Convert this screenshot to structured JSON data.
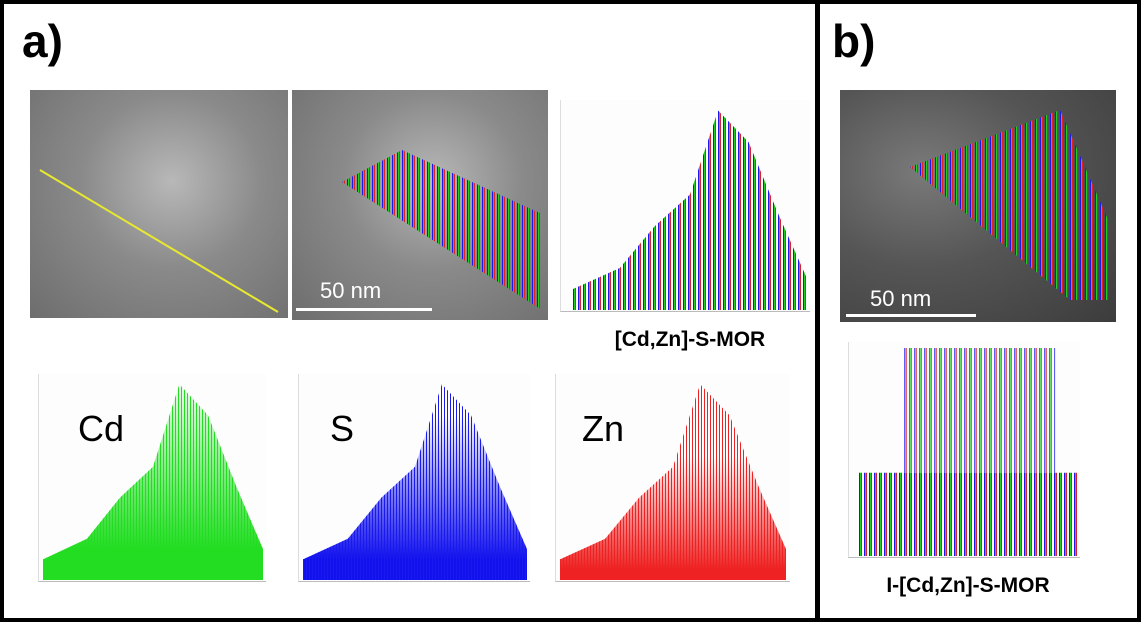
{
  "panels": [
    {
      "label": "a)",
      "scale_bar": "50 nm",
      "line_scan_title": "[Cd,Zn]-S-MOR",
      "element_profiles": [
        {
          "label": "Cd"
        },
        {
          "label": "S"
        },
        {
          "label": "Zn"
        }
      ]
    },
    {
      "label": "b)",
      "scale_bar": "50 nm",
      "line_scan_title": "I-[Cd,Zn]-S-MOR"
    }
  ]
}
